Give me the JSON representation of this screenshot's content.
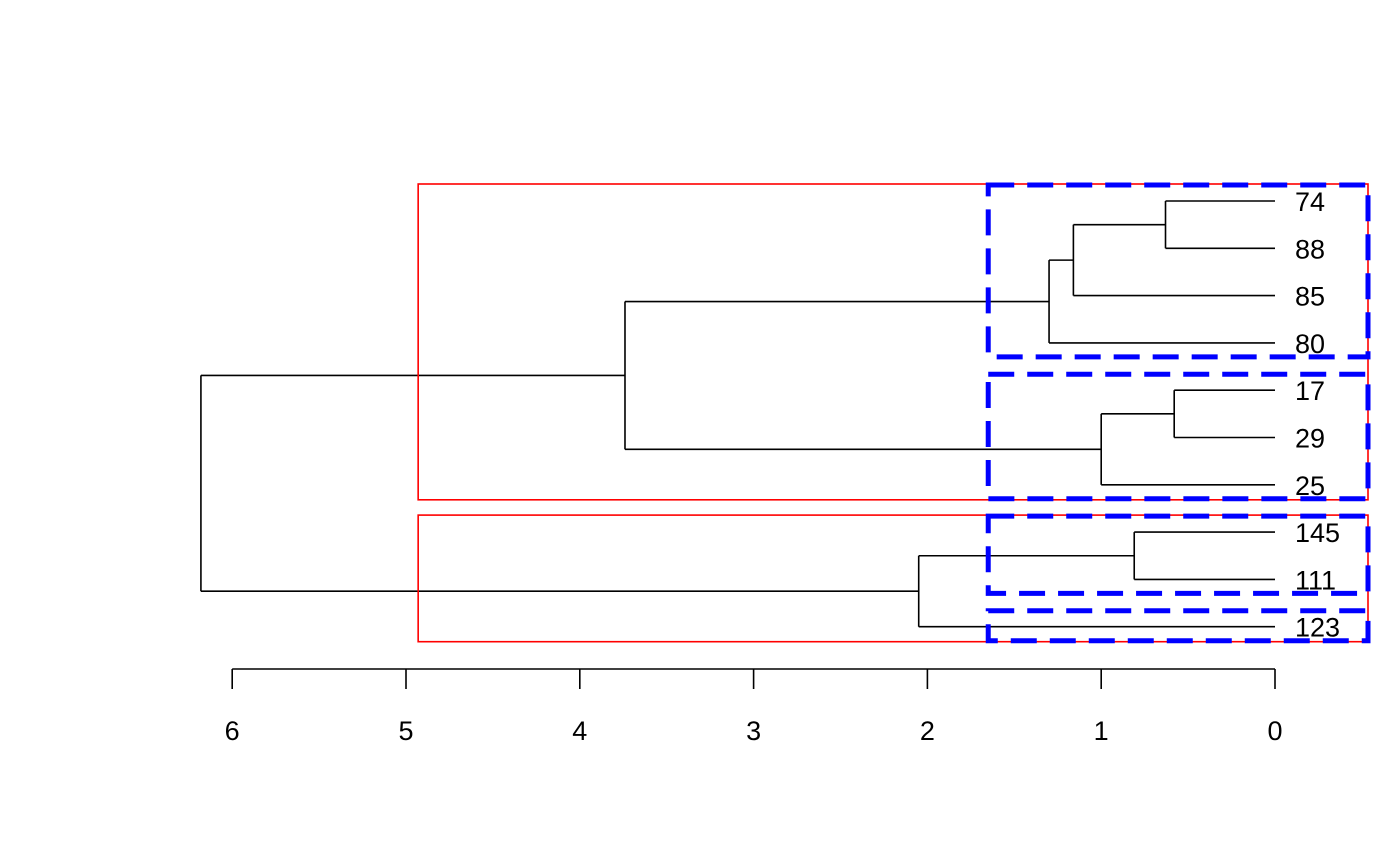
{
  "chart_data": {
    "type": "dendrogram",
    "orientation": "horizontal",
    "leaves": [
      "74",
      "88",
      "85",
      "80",
      "17",
      "29",
      "25",
      "145",
      "111",
      "123"
    ],
    "merges": [
      {
        "name": "m1",
        "children": [
          "74",
          "88"
        ],
        "height": 0.63
      },
      {
        "name": "m2",
        "children": [
          "m1",
          "85"
        ],
        "height": 1.16
      },
      {
        "name": "m3",
        "children": [
          "m2",
          "80"
        ],
        "height": 1.3
      },
      {
        "name": "m4",
        "children": [
          "17",
          "29"
        ],
        "height": 0.58
      },
      {
        "name": "m5",
        "children": [
          "m4",
          "25"
        ],
        "height": 1.0
      },
      {
        "name": "m6",
        "children": [
          "m3",
          "m5"
        ],
        "height": 3.74
      },
      {
        "name": "m7",
        "children": [
          "145",
          "111"
        ],
        "height": 0.81
      },
      {
        "name": "m8",
        "children": [
          "m7",
          "123"
        ],
        "height": 2.05
      },
      {
        "name": "m9",
        "children": [
          "m6",
          "m8"
        ],
        "height": 6.18
      }
    ],
    "xaxis": {
      "ticks": [
        6,
        5,
        4,
        3,
        2,
        1,
        0
      ],
      "reversed": true
    },
    "cluster_boxes_k2": {
      "color": "#ff0000",
      "cut_height": 4.93,
      "groups": [
        [
          "74",
          "88",
          "85",
          "80",
          "17",
          "29",
          "25"
        ],
        [
          "145",
          "111",
          "123"
        ]
      ]
    },
    "cluster_boxes_k4": {
      "color": "#0000ff",
      "style": "dashed",
      "cut_height": 1.65,
      "groups": [
        [
          "74",
          "88",
          "85",
          "80"
        ],
        [
          "17",
          "29",
          "25"
        ],
        [
          "145",
          "111"
        ],
        [
          "123"
        ]
      ]
    }
  }
}
